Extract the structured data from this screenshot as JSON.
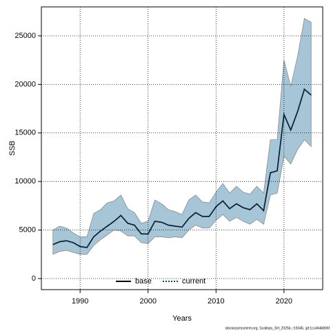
{
  "chart_data": {
    "type": "line",
    "x_label": "Years",
    "y_label": "SSB",
    "footer": "stockassessment.org, Scallops_SH_2025b, r19345, git:1cc464b806f",
    "x": [
      1986,
      1987,
      1988,
      1989,
      1990,
      1991,
      1992,
      1993,
      1994,
      1995,
      1996,
      1997,
      1998,
      1999,
      2000,
      2001,
      2002,
      2003,
      2004,
      2005,
      2006,
      2007,
      2008,
      2009,
      2010,
      2011,
      2012,
      2013,
      2014,
      2015,
      2016,
      2017,
      2018,
      2019,
      2020,
      2021,
      2022,
      2023,
      2024
    ],
    "series": [
      {
        "name": "base",
        "color": "#000000",
        "dash": false,
        "values": [
          3500,
          3800,
          3900,
          3700,
          3300,
          3200,
          4300,
          4900,
          5400,
          5900,
          6500,
          5700,
          5500,
          4600,
          4600,
          5900,
          5800,
          5500,
          5400,
          5300,
          6200,
          6800,
          6400,
          6400,
          7400,
          8000,
          7200,
          7700,
          7300,
          7100,
          7700,
          7000,
          10900,
          11100,
          16900,
          15300,
          17200,
          19500,
          18900
        ]
      },
      {
        "name": "current",
        "color": "#0b3a5c",
        "dash": true,
        "values": [
          3500,
          3800,
          3900,
          3700,
          3300,
          3200,
          4300,
          4900,
          5400,
          5900,
          6500,
          5700,
          5500,
          4600,
          4600,
          5900,
          5800,
          5500,
          5400,
          5300,
          6200,
          6800,
          6400,
          6400,
          7400,
          8000,
          7200,
          7700,
          7300,
          7100,
          7700,
          7000,
          10900,
          11100,
          16900,
          15300,
          17200,
          19500,
          18900
        ]
      }
    ],
    "band": {
      "color": "#a6c6d8",
      "upper": [
        5000,
        5400,
        5200,
        4700,
        4300,
        4300,
        6700,
        7100,
        7800,
        8000,
        8600,
        7200,
        6800,
        5700,
        5900,
        8100,
        7700,
        7100,
        6900,
        6600,
        8100,
        8600,
        7900,
        7800,
        8900,
        9800,
        8800,
        9500,
        8900,
        8700,
        9500,
        8800,
        14300,
        14300,
        22500,
        19800,
        22900,
        26800,
        26400
      ],
      "lower": [
        2500,
        2800,
        2900,
        2700,
        2500,
        2500,
        3400,
        4000,
        4500,
        5000,
        4900,
        4400,
        4400,
        3700,
        3600,
        4300,
        4300,
        4200,
        4300,
        4200,
        5000,
        5500,
        5200,
        5200,
        6000,
        6600,
        5900,
        6300,
        5900,
        5600,
        6100,
        5600,
        8600,
        8800,
        12600,
        11800,
        13300,
        14300,
        13600
      ]
    },
    "xlim": [
      1984.3,
      2025.7
    ],
    "ylim": [
      -1136,
      27980
    ],
    "xticks": [
      1990,
      2000,
      2010,
      2020
    ],
    "yticks": [
      0,
      5000,
      10000,
      15000,
      20000,
      25000
    ],
    "grid": true,
    "legend": "bottom"
  }
}
